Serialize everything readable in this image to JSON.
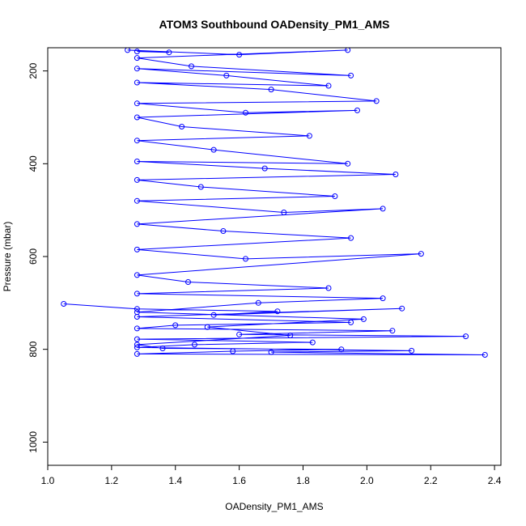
{
  "chart_data": {
    "type": "line",
    "title": "ATOM3 Southbound OADensity_PM1_AMS",
    "xlabel": "OADensity_PM1_AMS",
    "ylabel": "Pressure (mbar)",
    "xlim": [
      1.0,
      2.42
    ],
    "ylim": [
      1050,
      150
    ],
    "y_reversed": true,
    "x_ticks": [
      "1.0",
      "1.2",
      "1.4",
      "1.6",
      "1.8",
      "2.0",
      "2.2",
      "2.4"
    ],
    "y_ticks": [
      "200",
      "400",
      "600",
      "800",
      "1000"
    ],
    "grid": false,
    "legend": "none",
    "markers": "open-circle",
    "series_color": "#0000ff",
    "series": [
      {
        "points": [
          [
            1.05,
            702
          ],
          [
            1.28,
            713
          ],
          [
            1.72,
            718
          ],
          [
            1.52,
            726
          ],
          [
            2.11,
            712
          ],
          [
            1.28,
            730
          ],
          [
            1.95,
            742
          ],
          [
            1.4,
            748
          ],
          [
            1.28,
            755
          ],
          [
            2.08,
            760
          ],
          [
            1.6,
            768
          ],
          [
            2.31,
            772
          ],
          [
            1.28,
            778
          ],
          [
            1.83,
            785
          ],
          [
            1.46,
            790
          ],
          [
            1.28,
            796
          ],
          [
            2.14,
            803
          ],
          [
            1.7,
            806
          ],
          [
            2.37,
            812
          ],
          [
            1.28,
            810
          ],
          [
            1.58,
            804
          ],
          [
            1.92,
            800
          ],
          [
            1.36,
            798
          ],
          [
            1.28,
            790
          ],
          [
            1.76,
            770
          ],
          [
            1.5,
            752
          ],
          [
            1.99,
            735
          ],
          [
            1.28,
            720
          ],
          [
            1.66,
            700
          ],
          [
            2.05,
            690
          ],
          [
            1.28,
            680
          ],
          [
            1.88,
            668
          ],
          [
            1.44,
            655
          ],
          [
            1.28,
            640
          ],
          [
            2.17,
            594
          ],
          [
            1.62,
            605
          ],
          [
            1.28,
            585
          ],
          [
            1.95,
            560
          ],
          [
            1.55,
            545
          ],
          [
            1.28,
            530
          ],
          [
            2.05,
            497
          ],
          [
            1.74,
            505
          ],
          [
            1.28,
            480
          ],
          [
            1.9,
            470
          ],
          [
            1.48,
            450
          ],
          [
            1.28,
            435
          ],
          [
            2.09,
            423
          ],
          [
            1.68,
            410
          ],
          [
            1.28,
            395
          ],
          [
            1.94,
            400
          ],
          [
            1.52,
            370
          ],
          [
            1.28,
            350
          ],
          [
            1.82,
            340
          ],
          [
            1.42,
            320
          ],
          [
            1.28,
            300
          ],
          [
            1.97,
            285
          ],
          [
            1.62,
            290
          ],
          [
            1.28,
            270
          ],
          [
            2.03,
            265
          ],
          [
            1.7,
            240
          ],
          [
            1.28,
            225
          ],
          [
            1.88,
            232
          ],
          [
            1.56,
            210
          ],
          [
            1.28,
            195
          ],
          [
            1.95,
            210
          ],
          [
            1.45,
            190
          ],
          [
            1.28,
            172
          ],
          [
            1.94,
            155
          ],
          [
            1.6,
            165
          ],
          [
            1.25,
            155
          ],
          [
            1.38,
            160
          ],
          [
            1.28,
            158
          ]
        ]
      }
    ]
  }
}
